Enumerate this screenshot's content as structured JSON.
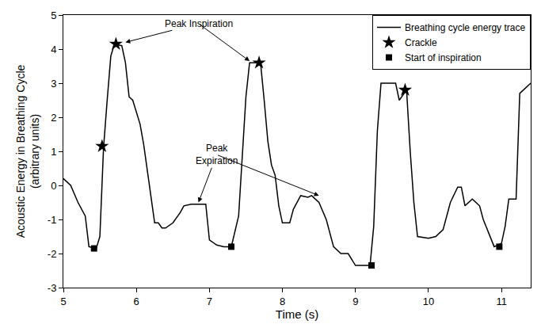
{
  "chart_data": {
    "type": "line",
    "x_label": "Time (s)",
    "y_label": "Acoustic Energy in Breathing Cycle\n(arbitrary units)",
    "xlim": [
      5,
      11.4
    ],
    "xticks": [
      5,
      6,
      7,
      8,
      9,
      10,
      11
    ],
    "ylim": [
      -3,
      5
    ],
    "yticks": [
      -3,
      -2,
      -1,
      0,
      1,
      2,
      3,
      4,
      5
    ],
    "grid": false,
    "legend": "top right",
    "series": [
      {
        "name": "Breathing cycle energy trace",
        "type": "line",
        "color": "#000000",
        "line_style": "solid",
        "x": [
          5.0,
          5.1,
          5.2,
          5.3,
          5.35,
          5.45,
          5.5,
          5.55,
          5.6,
          5.65,
          5.7,
          5.8,
          5.85,
          5.9,
          5.95,
          6.05,
          6.1,
          6.2,
          6.25,
          6.3,
          6.35,
          6.4,
          6.5,
          6.6,
          6.65,
          6.75,
          6.85,
          6.95,
          7.0,
          7.1,
          7.2,
          7.3,
          7.4,
          7.5,
          7.55,
          7.65,
          7.7,
          7.75,
          7.8,
          7.85,
          7.9,
          7.95,
          8.0,
          8.1,
          8.15,
          8.25,
          8.35,
          8.4,
          8.5,
          8.6,
          8.7,
          8.8,
          8.9,
          9.0,
          9.15,
          9.2,
          9.25,
          9.3,
          9.35,
          9.55,
          9.6,
          9.7,
          9.75,
          9.8,
          9.85,
          10.0,
          10.1,
          10.2,
          10.3,
          10.4,
          10.45,
          10.5,
          10.6,
          10.7,
          10.75,
          10.85,
          10.9,
          11.0,
          11.05,
          11.1,
          11.2,
          11.25,
          11.4
        ],
        "values": [
          0.2,
          0.0,
          -0.5,
          -0.9,
          -1.8,
          -1.85,
          -1.5,
          1.1,
          2.5,
          3.8,
          4.15,
          4.1,
          3.6,
          2.6,
          2.5,
          1.8,
          1.2,
          -0.4,
          -1.1,
          -1.1,
          -1.25,
          -1.25,
          -1.1,
          -0.8,
          -0.6,
          -0.55,
          -0.55,
          -0.55,
          -1.6,
          -1.75,
          -1.8,
          -1.8,
          -0.9,
          2.6,
          3.6,
          3.6,
          3.6,
          2.5,
          1.3,
          0.6,
          0.3,
          -0.6,
          -1.1,
          -1.1,
          -0.7,
          -0.3,
          -0.35,
          -0.3,
          -0.5,
          -1.0,
          -1.8,
          -2.0,
          -2.0,
          -2.35,
          -2.35,
          -2.35,
          -1.2,
          1.6,
          3.0,
          3.0,
          2.5,
          2.8,
          1.0,
          -0.5,
          -1.5,
          -1.55,
          -1.5,
          -1.3,
          -0.5,
          -0.05,
          -0.05,
          -0.6,
          -0.4,
          -0.6,
          -1.0,
          -1.55,
          -1.8,
          -1.7,
          -1.2,
          -0.4,
          -0.4,
          2.7,
          3.0
        ]
      },
      {
        "name": "Crackle",
        "type": "scatter",
        "marker": "star",
        "color": "#000000",
        "x": [
          5.53,
          5.72,
          7.68,
          9.68
        ],
        "values": [
          1.15,
          4.15,
          3.6,
          2.8
        ]
      },
      {
        "name": "Start of inspiration",
        "type": "scatter",
        "marker": "square",
        "color": "#000000",
        "x": [
          5.42,
          7.3,
          9.22,
          10.97
        ],
        "values": [
          -1.85,
          -1.8,
          -2.35,
          -1.8
        ]
      }
    ],
    "annotations": [
      {
        "text": "Peak Inspiration",
        "x": 6.85,
        "y": 4.75,
        "arrows": [
          [
            5.85,
            4.2
          ],
          [
            7.55,
            3.65
          ]
        ]
      },
      {
        "text": "Peak\nExpiration",
        "x": 7.1,
        "y": 0.9,
        "arrows": [
          [
            6.85,
            -0.5
          ],
          [
            8.5,
            -0.3
          ]
        ]
      }
    ]
  }
}
